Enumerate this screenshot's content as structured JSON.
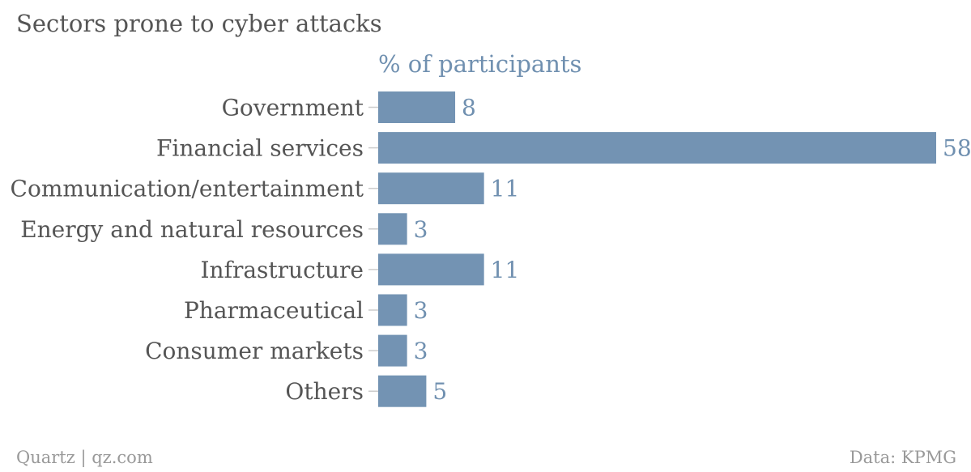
{
  "title": "Sectors prone to cyber attacks",
  "footer": {
    "source_left": "Quartz | qz.com",
    "source_right": "Data: KPMG"
  },
  "colors": {
    "bar": "#7393b3",
    "value_text": "#7090b0",
    "label_text": "#555555"
  },
  "chart_data": {
    "type": "bar",
    "orientation": "horizontal",
    "title": "Sectors prone to cyber attacks",
    "series": [
      {
        "name": "% of participants",
        "values": [
          8,
          58,
          11,
          3,
          11,
          3,
          3,
          5
        ]
      }
    ],
    "categories": [
      "Government",
      "Financial services",
      "Communication/entertainment",
      "Energy and natural resources",
      "Infrastructure",
      "Pharmaceutical",
      "Consumer markets",
      "Others"
    ],
    "xlim": [
      0,
      58
    ],
    "grid": false,
    "legend": "none"
  }
}
